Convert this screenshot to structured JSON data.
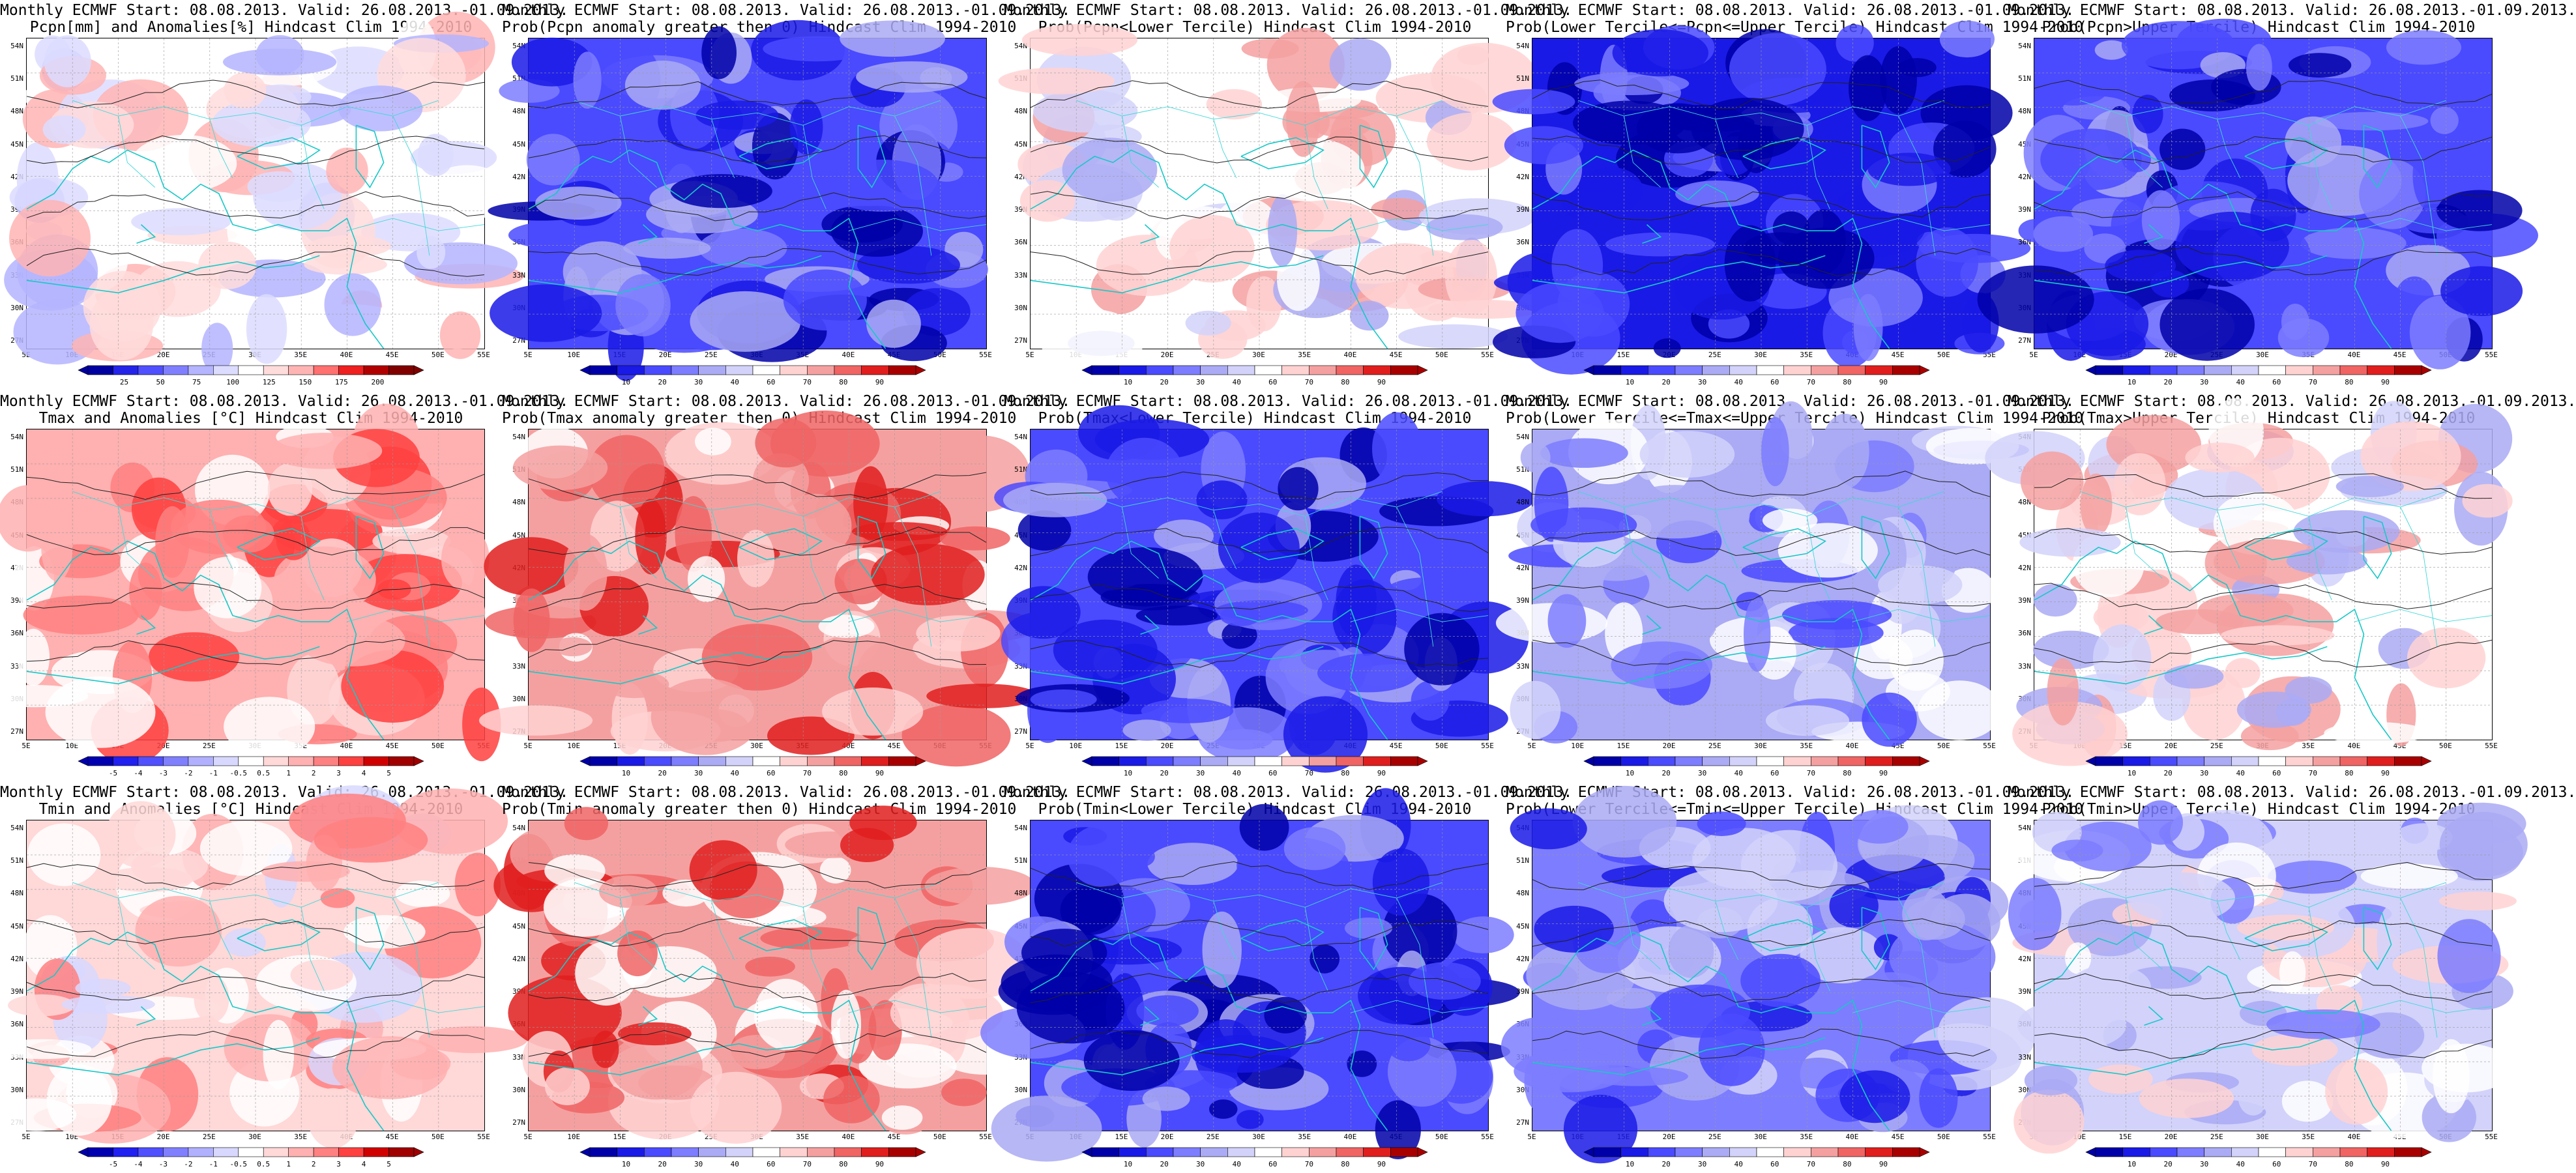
{
  "layout_rows": 3,
  "layout_cols": 5,
  "latitude_ticks": [
    "54N",
    "51N",
    "48N",
    "45N",
    "42N",
    "39N",
    "36N",
    "33N",
    "30N",
    "27N"
  ],
  "longitude_ticks": [
    "5E",
    "10E",
    "15E",
    "20E",
    "25E",
    "30E",
    "35E",
    "40E",
    "45E",
    "50E",
    "55E"
  ],
  "palettes": {
    "prob": [
      "#0000a8",
      "#1a1ae6",
      "#4a4aff",
      "#7d7dff",
      "#aaaaf5",
      "#d2d2fa",
      "#ffffff",
      "#ffd2d2",
      "#f5a0a0",
      "#f06464",
      "#e01e1e",
      "#a80000"
    ],
    "anom_temp": [
      "#0000b0",
      "#2020f0",
      "#5050ff",
      "#8080ff",
      "#b0b0ff",
      "#d8d8ff",
      "#ffffff",
      "#ffd8d8",
      "#ffb0b0",
      "#ff8080",
      "#ff4040",
      "#d00000",
      "#a00000"
    ],
    "anom_pcpn": [
      "#0000a0",
      "#2424e8",
      "#5050ff",
      "#8080ff",
      "#b4b4ff",
      "#dcdcff",
      "#ffffff",
      "#ffdcdc",
      "#ffb4b4",
      "#ff7070",
      "#ee2020",
      "#b00000",
      "#800000"
    ]
  },
  "panels": [
    {
      "title1": "Monthly ECMWF Start: 08.08.2013. Valid: 26.08.2013.-01.09.2013.",
      "title2": "Pcpn[mm] and Anomalies[%] Hindcast Clim 1994-2010",
      "palette": "anom_pcpn",
      "colorbar_labels": [
        "25",
        "50",
        "75",
        "100",
        "125",
        "150",
        "175",
        "200"
      ],
      "field_level": 0.46
    },
    {
      "title1": "Monthly ECMWF Start: 08.08.2013. Valid: 26.08.2013.-01.09.2013.",
      "title2": "Prob(Pcpn anomaly greater then 0) Hindcast Clim 1994-2010",
      "palette": "prob",
      "colorbar_labels": [
        "10",
        "20",
        "30",
        "40",
        "60",
        "70",
        "80",
        "90"
      ],
      "field_level": 0.22
    },
    {
      "title1": "Monthly ECMWF Start: 08.08.2013. Valid: 26.08.2013.-01.09.2013.",
      "title2": "Prob(Pcpn<Lower Tercile) Hindcast Clim 1994-2010",
      "palette": "prob",
      "colorbar_labels": [
        "10",
        "20",
        "30",
        "40",
        "60",
        "70",
        "80",
        "90"
      ],
      "field_level": 0.58
    },
    {
      "title1": "Monthly ECMWF Start: 08.08.2013. Valid: 26.08.2013.-01.09.2013.",
      "title2": "Prob(Lower Tercile<=Pcpn<=Upper Tercile) Hindcast Clim 1994-2010",
      "palette": "prob",
      "colorbar_labels": [
        "10",
        "20",
        "30",
        "40",
        "60",
        "70",
        "80",
        "90"
      ],
      "field_level": 0.12
    },
    {
      "title1": "Monthly ECMWF Start: 08.08.2013. Valid: 26.08.2013.-01.09.2013.",
      "title2": "Prob(Pcpn>Upper Tercile) Hindcast Clim 1994-2010",
      "palette": "prob",
      "colorbar_labels": [
        "10",
        "20",
        "30",
        "40",
        "60",
        "70",
        "80",
        "90"
      ],
      "field_level": 0.2
    },
    {
      "title1": "Monthly ECMWF Start: 08.08.2013. Valid: 26.08.2013.-01.09.2013.",
      "title2": "Tmax and Anomalies [°C] Hindcast Clim 1994-2010",
      "palette": "anom_temp",
      "colorbar_labels": [
        "-5",
        "-4",
        "-3",
        "-2",
        "-1",
        "-0.5",
        "0.5",
        "1",
        "2",
        "3",
        "4",
        "5"
      ],
      "field_level": 0.64
    },
    {
      "title1": "Monthly ECMWF Start: 08.08.2013. Valid: 26.08.2013.-01.09.2013.",
      "title2": "Prob(Tmax anomaly greater then 0) Hindcast Clim 1994-2010",
      "palette": "prob",
      "colorbar_labels": [
        "10",
        "20",
        "30",
        "40",
        "60",
        "70",
        "80",
        "90"
      ],
      "field_level": 0.74
    },
    {
      "title1": "Monthly ECMWF Start: 08.08.2013. Valid: 26.08.2013.-01.09.2013.",
      "title2": "Prob(Tmax<Lower Tercile) Hindcast Clim 1994-2010",
      "palette": "prob",
      "colorbar_labels": [
        "10",
        "20",
        "30",
        "40",
        "60",
        "70",
        "80",
        "90"
      ],
      "field_level": 0.16
    },
    {
      "title1": "Monthly ECMWF Start: 08.08.2013. Valid: 26.08.2013.-01.09.2013.",
      "title2": "Prob(Lower Tercile<=Tmax<=Upper Tercile) Hindcast Clim 1994-2010",
      "palette": "prob",
      "colorbar_labels": [
        "10",
        "20",
        "30",
        "40",
        "60",
        "70",
        "80",
        "90"
      ],
      "field_level": 0.34
    },
    {
      "title1": "Monthly ECMWF Start: 08.08.2013. Valid: 26.08.2013.-01.09.2013.",
      "title2": "Prob(Tmax>Upper Tercile) Hindcast Clim 1994-2010",
      "palette": "prob",
      "colorbar_labels": [
        "10",
        "20",
        "30",
        "40",
        "60",
        "70",
        "80",
        "90"
      ],
      "field_level": 0.5
    },
    {
      "title1": "Monthly ECMWF Start: 08.08.2013. Valid: 26.08.2013.-01.09.2013.",
      "title2": "Tmin and Anomalies [°C] Hindcast Clim 1994-2010",
      "palette": "anom_temp",
      "colorbar_labels": [
        "-5",
        "-4",
        "-3",
        "-2",
        "-1",
        "-0.5",
        "0.5",
        "1",
        "2",
        "3",
        "4",
        "5"
      ],
      "field_level": 0.62
    },
    {
      "title1": "Monthly ECMWF Start: 08.08.2013. Valid: 26.08.2013.-01.09.2013.",
      "title2": "Prob(Tmin anomaly greater then 0) Hindcast Clim 1994-2010",
      "palette": "prob",
      "colorbar_labels": [
        "10",
        "20",
        "30",
        "40",
        "60",
        "70",
        "80",
        "90"
      ],
      "field_level": 0.7
    },
    {
      "title1": "Monthly ECMWF Start: 08.08.2013. Valid: 26.08.2013.-01.09.2013.",
      "title2": "Prob(Tmin<Lower Tercile) Hindcast Clim 1994-2010",
      "palette": "prob",
      "colorbar_labels": [
        "10",
        "20",
        "30",
        "40",
        "60",
        "70",
        "80",
        "90"
      ],
      "field_level": 0.2
    },
    {
      "title1": "Monthly ECMWF Start: 08.08.2013. Valid: 26.08.2013.-01.09.2013.",
      "title2": "Prob(Lower Tercile<=Tmin<=Upper Tercile) Hindcast Clim 1994-2010",
      "palette": "prob",
      "colorbar_labels": [
        "10",
        "20",
        "30",
        "40",
        "60",
        "70",
        "80",
        "90"
      ],
      "field_level": 0.3
    },
    {
      "title1": "Monthly ECMWF Start: 08.08.2013. Valid: 26.08.2013.-01.09.2013.",
      "title2": "Prob(Tmin>Upper Tercile) Hindcast Clim 1994-2010",
      "palette": "prob",
      "colorbar_labels": [
        "10",
        "20",
        "30",
        "40",
        "60",
        "70",
        "80",
        "90"
      ],
      "field_level": 0.45
    }
  ]
}
